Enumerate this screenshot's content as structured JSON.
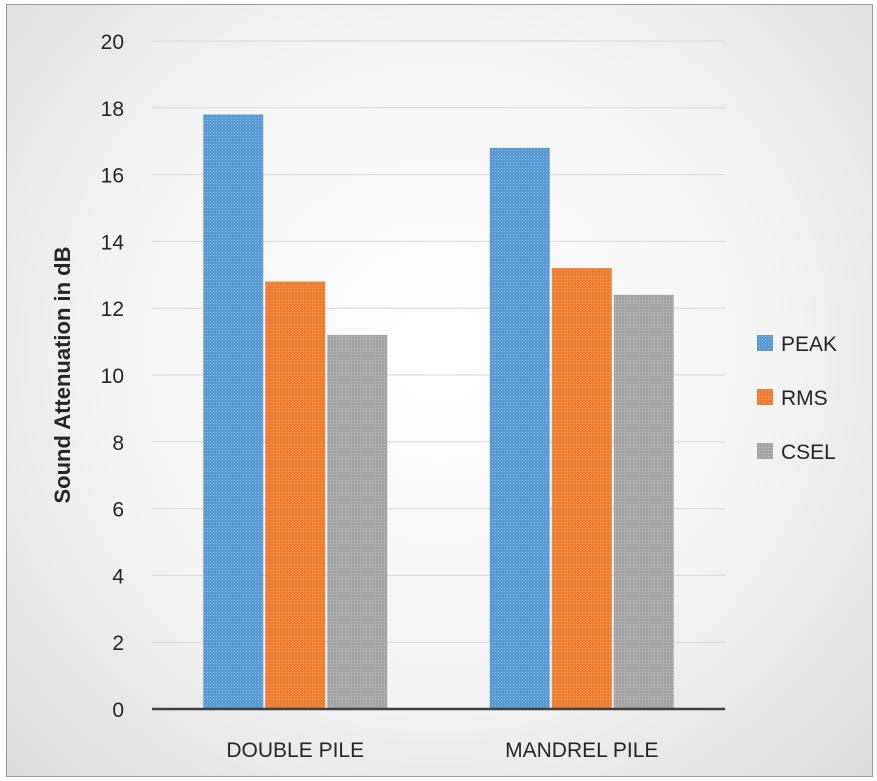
{
  "chart_data": {
    "type": "bar",
    "title": "",
    "xlabel": "",
    "ylabel": "Sound Attenuation in dB",
    "categories": [
      "DOUBLE PILE",
      "MANDREL PILE"
    ],
    "series": [
      {
        "name": "PEAK",
        "values": [
          17.8,
          16.8
        ],
        "color": "#5b9bd5"
      },
      {
        "name": "RMS",
        "values": [
          12.8,
          13.2
        ],
        "color": "#ed7d31"
      },
      {
        "name": "CSEL",
        "values": [
          11.2,
          12.4
        ],
        "color": "#a5a5a5"
      }
    ],
    "ylim": [
      0,
      20
    ],
    "yticks": [
      "0",
      "2",
      "4",
      "6",
      "8",
      "10",
      "12",
      "14",
      "16",
      "18",
      "20"
    ],
    "grid": true,
    "legend_position": "right"
  }
}
